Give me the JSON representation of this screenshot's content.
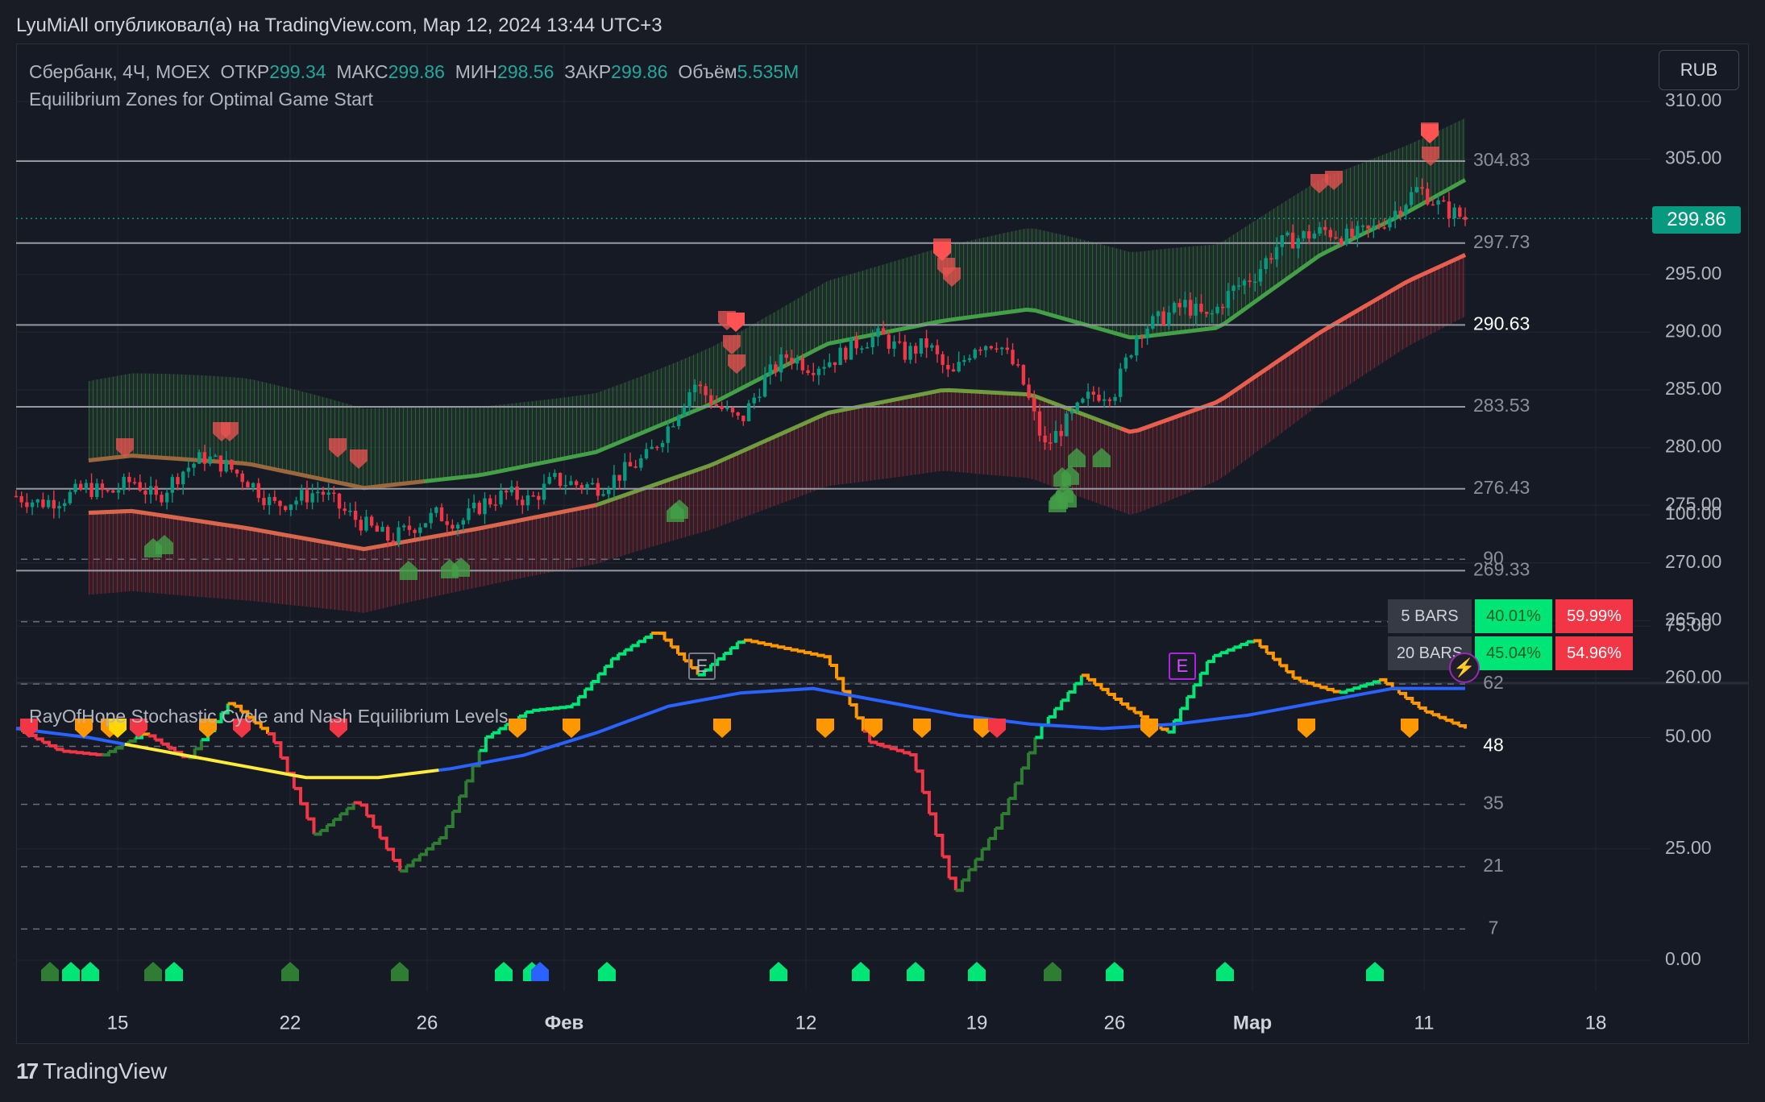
{
  "header": {
    "publish_line": "LyuMiAll опубликовал(а) на TradingView.com, Мар 12, 2024 13:44 UTC+3"
  },
  "footer": {
    "brand": "TradingView"
  },
  "currency_button": "RUB",
  "legend": {
    "symbol": "Сбербанк, 4Ч, MOEX",
    "open_label": "ОТКР",
    "open_value": "299.34",
    "high_label": "МАКС",
    "high_value": "299.86",
    "low_label": "МИН",
    "low_value": "298.56",
    "close_label": "ЗАКР",
    "close_value": "299.86",
    "volume_label": "Объём",
    "volume_value": "5.535M",
    "indicator_title": "Equilibrium Zones for Optimal Game Start"
  },
  "last_price_tag": "299.86",
  "stats_table": {
    "rows": [
      {
        "label": "5 BARS",
        "up": "40.01%",
        "down": "59.99%"
      },
      {
        "label": "20 BARS",
        "up": "45.04%",
        "down": "54.96%"
      }
    ]
  },
  "earnings_markers": [
    {
      "label": "E"
    },
    {
      "label": "E"
    }
  ],
  "bolt_icon": "lightning-icon",
  "pane2": {
    "title": "RayOfHope Stochastic Cycle and Nash Equilibrium Levels"
  },
  "colors": {
    "up": "#089981",
    "down": "#f23645",
    "green_band": "#4caf50",
    "red_band": "#f23645",
    "stoch_green": "#00e676",
    "stoch_orange": "#ff9800",
    "stoch_red": "#f23645",
    "stoch_yellow": "#ffeb3b",
    "stoch_blue": "#2962ff"
  },
  "chart_data": [
    {
      "type": "candlestick",
      "title": "Сбербанк, 4Ч, MOEX",
      "x_ticks": [
        "15",
        "22",
        "26",
        "Фев",
        "12",
        "19",
        "26",
        "Мар",
        "11",
        "18"
      ],
      "y_ticks": [
        "310.00",
        "305.00",
        "295.00",
        "290.00",
        "285.00",
        "280.00",
        "275.00",
        "270.00",
        "265.00",
        "260.00"
      ],
      "ylim": [
        260,
        311
      ],
      "last_price": 299.86,
      "levels": [
        {
          "value": 304.83,
          "label": "304.83"
        },
        {
          "value": 297.73,
          "label": "297.73"
        },
        {
          "value": 290.63,
          "label": "290.63"
        },
        {
          "value": 283.53,
          "label": "283.53"
        },
        {
          "value": 276.43,
          "label": "276.43"
        },
        {
          "value": 269.33,
          "label": "269.33"
        }
      ],
      "close_path": [
        275.8,
        275.2,
        275.6,
        276.5,
        276.0,
        277.2,
        275.5,
        277.8,
        279.2,
        278.4,
        277.0,
        275.0,
        275.5,
        276.3,
        274.5,
        273.2,
        272.0,
        273.2,
        274.2,
        273.5,
        275.2,
        276.0,
        275.4,
        277.2,
        276.8,
        276.6,
        277.9,
        279.2,
        282.1,
        285.6,
        283.6,
        282.2,
        285.9,
        288.0,
        287.0,
        287.7,
        289.1,
        289.7,
        288.1,
        289.0,
        286.0,
        288.9,
        289.2,
        286.1,
        280.0,
        282.3,
        284.6,
        284.9,
        290.1,
        291.2,
        292.4,
        291.1,
        293.6,
        295.0,
        297.6,
        298.3,
        298.8,
        298.2,
        298.8,
        300.5,
        302.5,
        300.8,
        299.86
      ],
      "upper_band": [
        278.2,
        279.3,
        278.6,
        276.5,
        277.6,
        279.6,
        283.8,
        289.0,
        291.0,
        292.0,
        289.5,
        290.4,
        296.7,
        300.4,
        303.2
      ],
      "lower_band": [
        274.1,
        274.5,
        273.0,
        271.2,
        273.0,
        275.0,
        278.5,
        283.0,
        285.0,
        284.6,
        281.3,
        284.0,
        290.0,
        294.4,
        296.7
      ],
      "band_x": [
        0,
        0.08,
        0.16,
        0.24,
        0.32,
        0.4,
        0.48,
        0.56,
        0.64,
        0.7,
        0.77,
        0.83,
        0.9,
        0.96,
        1.0
      ]
    },
    {
      "type": "line",
      "title": "RayOfHope Stochastic Cycle and Nash Equilibrium Levels",
      "y_ticks": [
        "100.00",
        "75.00",
        "50.00",
        "25.00",
        "0.00"
      ],
      "ylim": [
        0,
        100
      ],
      "levels": [
        {
          "value": 90,
          "label": "90"
        },
        {
          "value": 76,
          "label": "76"
        },
        {
          "value": 62,
          "label": "62"
        },
        {
          "value": 48,
          "label": "48"
        },
        {
          "value": 35,
          "label": "35"
        },
        {
          "value": 21,
          "label": "21"
        },
        {
          "value": 7,
          "label": "7"
        }
      ],
      "series": [
        {
          "values": [
            52,
            47,
            46,
            51,
            45,
            58,
            50,
            28,
            36,
            20,
            28,
            50,
            56,
            57,
            68,
            74,
            64,
            72,
            70,
            68,
            49,
            46,
            15,
            30,
            52,
            64,
            57,
            51,
            68,
            72,
            63,
            60,
            63,
            56,
            52
          ]
        },
        {
          "values": [
            52,
            50,
            47,
            44,
            41,
            41,
            43,
            46,
            51,
            57,
            60,
            61,
            58,
            55,
            53,
            52,
            53,
            55,
            58,
            61,
            61
          ]
        }
      ]
    }
  ]
}
